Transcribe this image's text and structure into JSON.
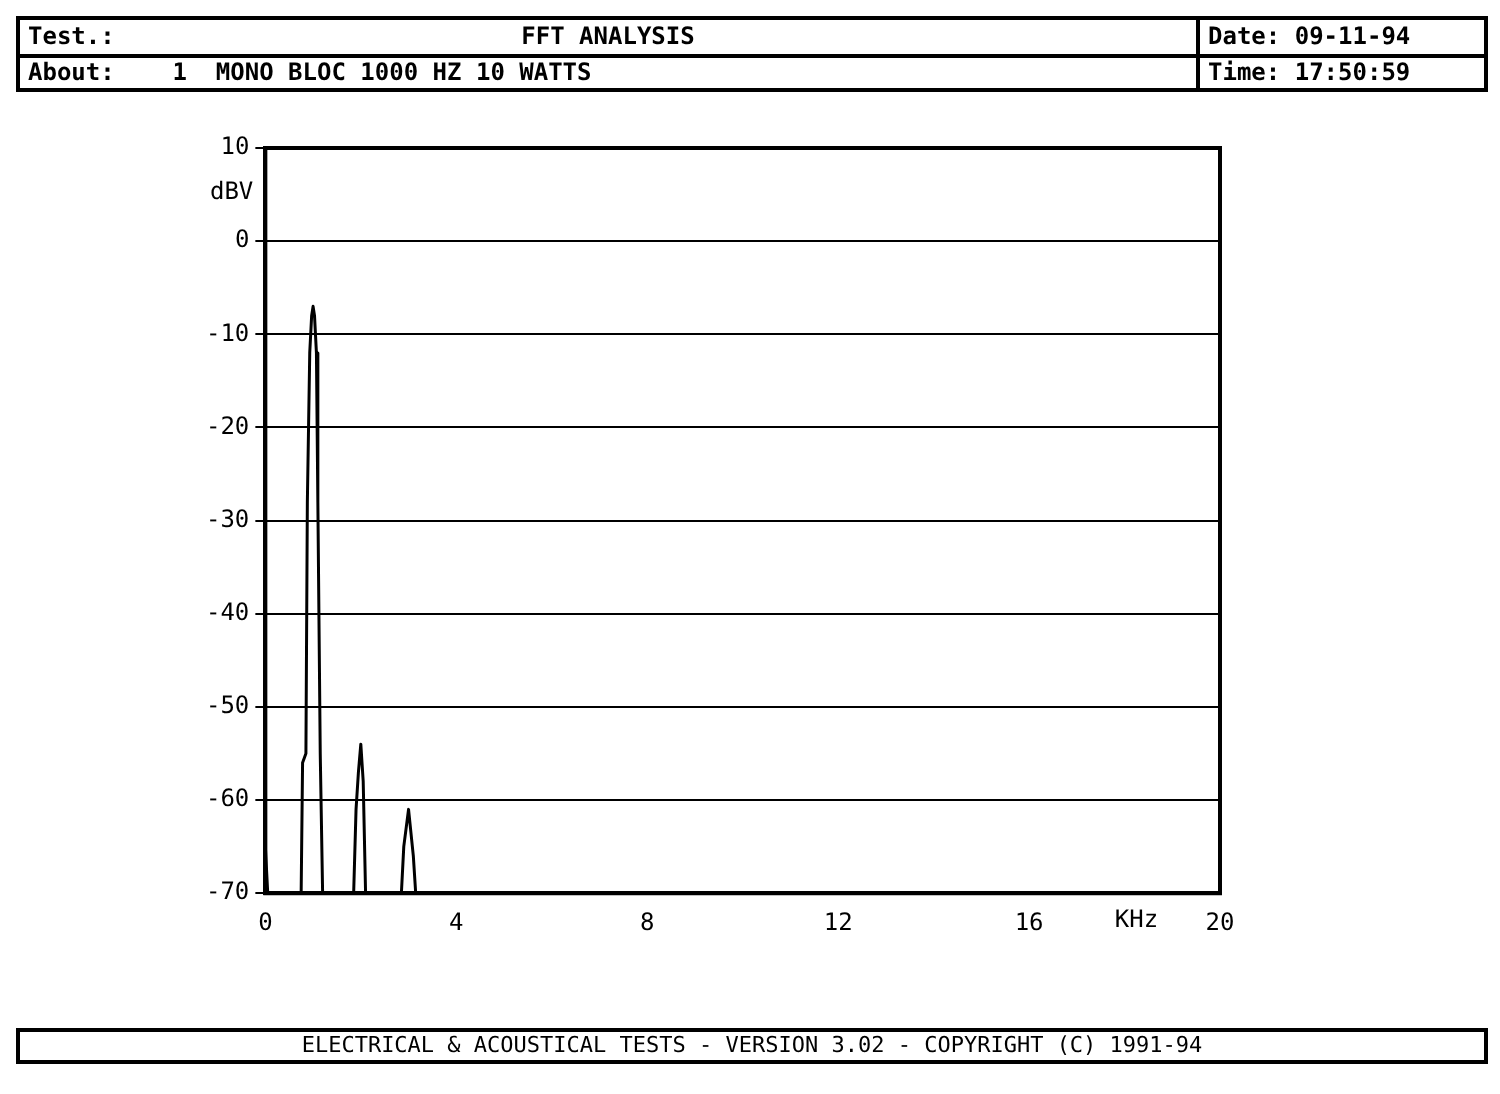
{
  "chart_data": {
    "type": "line",
    "title": "FFT ANALYSIS",
    "xlabel": "KHz",
    "ylabel": "dBV",
    "annotations": [
      "Test.:",
      "About:    1  MONO BLOC 1000 HZ 10 WATTS",
      "Date: 09-11-94",
      "Time: 17:50:59",
      "ELECTRICAL & ACOUSTICAL TESTS  -  VERSION 3.02  -  COPYRIGHT (C) 1991-94"
    ],
    "series": [
      {
        "color": "#000000",
        "x": [
          0,
          0.05,
          0.1,
          0.75,
          0.78,
          0.85,
          0.88,
          0.93,
          0.97,
          1.0,
          1.03,
          1.07,
          1.1,
          1.15,
          1.2,
          1.85,
          1.9,
          1.95,
          2.0,
          2.05,
          2.1,
          2.85,
          2.9,
          3.0,
          3.1,
          3.15,
          20
        ],
        "values": [
          -65,
          -70,
          -70,
          -70,
          -56,
          -55,
          -28,
          -12,
          -8,
          -7,
          -8,
          -12,
          -28,
          -55,
          -70,
          -70,
          -61,
          -57,
          -54,
          -58,
          -70,
          -70,
          -65,
          -61,
          -66,
          -70,
          -70
        ]
      }
    ],
    "xlim": [
      0,
      20
    ],
    "xticks": [
      0,
      4,
      8,
      12,
      16,
      20
    ],
    "ylim": [
      -70,
      10
    ],
    "yticks": [
      -70,
      -60,
      -50,
      -40,
      -30,
      -20,
      -10,
      0,
      10
    ],
    "grid": "y",
    "legend": false,
    "marker": "none",
    "line_style": "solid"
  }
}
